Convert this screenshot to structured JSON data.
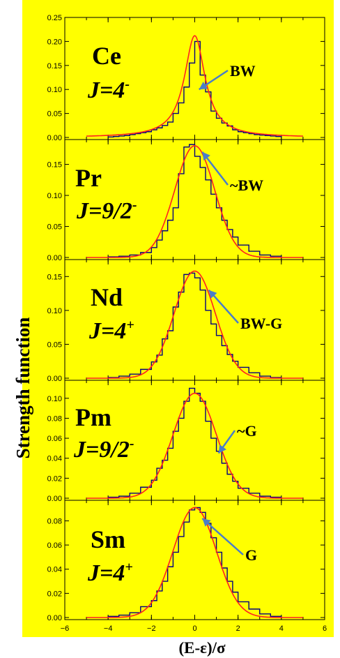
{
  "ylabel": "Strength function",
  "xlabel": "(E-ε)/σ",
  "xticks": [
    "−6",
    "−4",
    "−2",
    "0",
    "2",
    "4",
    "6"
  ],
  "colors": {
    "background": "#ffff00",
    "histogram": "#000080",
    "fit": "#ff2020",
    "arrow": "#4a7ec8"
  },
  "chart_data": [
    {
      "type": "line",
      "element": "Ce",
      "jlabel": "J=4",
      "jsup": "-",
      "annotation": "BW",
      "arrow_at": [
        0.2,
        0.1
      ],
      "ylim": [
        0,
        0.25
      ],
      "yticks": [
        "0.25",
        "0.20",
        "0.15",
        "0.10",
        "0.05",
        "0.00"
      ],
      "ytick_values": [
        0.25,
        0.2,
        0.15,
        0.1,
        0.05,
        0.0
      ],
      "xlim": [
        -6,
        6
      ],
      "fit": {
        "form": "Breit-Wigner",
        "center": 0.0,
        "width": 0.58,
        "peak": 0.212
      },
      "histogram": {
        "edges": [
          -4,
          -3.75,
          -3.5,
          -3.25,
          -3,
          -2.75,
          -2.5,
          -2.25,
          -2,
          -1.75,
          -1.5,
          -1.25,
          -1,
          -0.75,
          -0.5,
          -0.25,
          0,
          0.25,
          0.5,
          0.75,
          1,
          1.25,
          1.5,
          1.75,
          2,
          2.25,
          2.5,
          2.75,
          3,
          3.25,
          3.5,
          3.75,
          4
        ],
        "values": [
          0.001,
          0.002,
          0.003,
          0.004,
          0.006,
          0.008,
          0.01,
          0.012,
          0.016,
          0.02,
          0.025,
          0.032,
          0.05,
          0.072,
          0.105,
          0.155,
          0.2,
          0.13,
          0.095,
          0.055,
          0.04,
          0.03,
          0.024,
          0.016,
          0.012,
          0.01,
          0.008,
          0.006,
          0.005,
          0.004,
          0.003,
          0.002
        ]
      }
    },
    {
      "type": "line",
      "element": "Pr",
      "jlabel": "J=9/2",
      "jsup": "-",
      "annotation": "~BW",
      "arrow_at": [
        0.35,
        0.17
      ],
      "ylim": [
        0,
        0.19
      ],
      "yticks": [
        "0.15",
        "0.10",
        "0.05",
        "0.00"
      ],
      "ytick_values": [
        0.15,
        0.1,
        0.05,
        0.0
      ],
      "xlim": [
        -6,
        6
      ],
      "fit": {
        "form": "Gaussian",
        "center": 0.0,
        "width": 0.92,
        "peak": 0.18
      },
      "histogram": {
        "edges": [
          -4,
          -3.5,
          -3,
          -2.5,
          -2,
          -1.75,
          -1.5,
          -1.25,
          -1,
          -0.75,
          -0.5,
          -0.25,
          0,
          0.25,
          0.5,
          0.75,
          1,
          1.25,
          1.5,
          1.75,
          2,
          2.5,
          3,
          3.5,
          4
        ],
        "values": [
          0.001,
          0.002,
          0.004,
          0.008,
          0.016,
          0.028,
          0.043,
          0.06,
          0.08,
          0.135,
          0.178,
          0.182,
          0.163,
          0.145,
          0.125,
          0.102,
          0.08,
          0.06,
          0.045,
          0.033,
          0.02,
          0.01,
          0.004,
          0.002
        ]
      }
    },
    {
      "type": "line",
      "element": "Nd",
      "jlabel": "J=4",
      "jsup": "+",
      "annotation": "BW-G",
      "arrow_at": [
        0.65,
        0.13
      ],
      "ylim": [
        0,
        0.175
      ],
      "yticks": [
        "0.15",
        "0.10",
        "0.05",
        "0.00"
      ],
      "ytick_values": [
        0.15,
        0.1,
        0.05,
        0.0
      ],
      "xlim": [
        -6,
        6
      ],
      "fit": {
        "form": "Gaussian",
        "center": 0.0,
        "width": 0.95,
        "peak": 0.158
      },
      "histogram": {
        "edges": [
          -4,
          -3.5,
          -3,
          -2.5,
          -2,
          -1.75,
          -1.5,
          -1.25,
          -1,
          -0.75,
          -0.5,
          -0.25,
          0,
          0.25,
          0.5,
          0.75,
          1,
          1.25,
          1.5,
          1.75,
          2,
          2.5,
          3,
          3.5,
          4
        ],
        "values": [
          0.001,
          0.003,
          0.006,
          0.013,
          0.024,
          0.034,
          0.058,
          0.07,
          0.105,
          0.127,
          0.153,
          0.155,
          0.148,
          0.13,
          0.1,
          0.08,
          0.063,
          0.048,
          0.035,
          0.025,
          0.016,
          0.008,
          0.003,
          0.001
        ]
      }
    },
    {
      "type": "line",
      "element": "Pm",
      "jlabel": "J=9/2",
      "jsup": "-",
      "annotation": "~G",
      "arrow_at": [
        1.1,
        0.045
      ],
      "ylim": [
        0,
        0.118
      ],
      "yticks": [
        "0.10",
        "0.08",
        "0.06",
        "0.04",
        "0.02",
        "0.00"
      ],
      "ytick_values": [
        0.1,
        0.08,
        0.06,
        0.04,
        0.02,
        0.0
      ],
      "xlim": [
        -6,
        6
      ],
      "fit": {
        "form": "Gaussian",
        "center": 0.0,
        "width": 1.0,
        "peak": 0.105
      },
      "histogram": {
        "edges": [
          -4,
          -3.5,
          -3,
          -2.5,
          -2,
          -1.75,
          -1.5,
          -1.25,
          -1,
          -0.75,
          -0.5,
          -0.25,
          0,
          0.25,
          0.5,
          0.75,
          1,
          1.25,
          1.5,
          1.75,
          2,
          2.5,
          3,
          3.5,
          4
        ],
        "values": [
          0.001,
          0.002,
          0.005,
          0.011,
          0.018,
          0.03,
          0.038,
          0.05,
          0.067,
          0.08,
          0.097,
          0.11,
          0.105,
          0.097,
          0.077,
          0.06,
          0.047,
          0.035,
          0.024,
          0.017,
          0.01,
          0.005,
          0.002,
          0.001
        ]
      }
    },
    {
      "type": "line",
      "element": "Sm",
      "jlabel": "J=4",
      "jsup": "+",
      "annotation": "G",
      "arrow_at": [
        0.35,
        0.082
      ],
      "ylim": [
        0,
        0.097
      ],
      "yticks": [
        "0.08",
        "0.06",
        "0.04",
        "0.02",
        "0.00"
      ],
      "ytick_values": [
        0.08,
        0.06,
        0.04,
        0.02,
        0.0
      ],
      "xlim": [
        -6,
        6
      ],
      "fit": {
        "form": "Gaussian",
        "center": 0.0,
        "width": 1.0,
        "peak": 0.091
      },
      "histogram": {
        "edges": [
          -4,
          -3.5,
          -3,
          -2.5,
          -2,
          -1.75,
          -1.5,
          -1.25,
          -1,
          -0.75,
          -0.5,
          -0.25,
          0,
          0.25,
          0.5,
          0.75,
          1,
          1.25,
          1.5,
          1.75,
          2,
          2.5,
          3,
          3.5,
          4
        ],
        "values": [
          0.001,
          0.002,
          0.004,
          0.009,
          0.014,
          0.022,
          0.03,
          0.042,
          0.054,
          0.067,
          0.079,
          0.089,
          0.091,
          0.087,
          0.078,
          0.066,
          0.054,
          0.041,
          0.03,
          0.021,
          0.013,
          0.007,
          0.003,
          0.001
        ]
      }
    }
  ]
}
